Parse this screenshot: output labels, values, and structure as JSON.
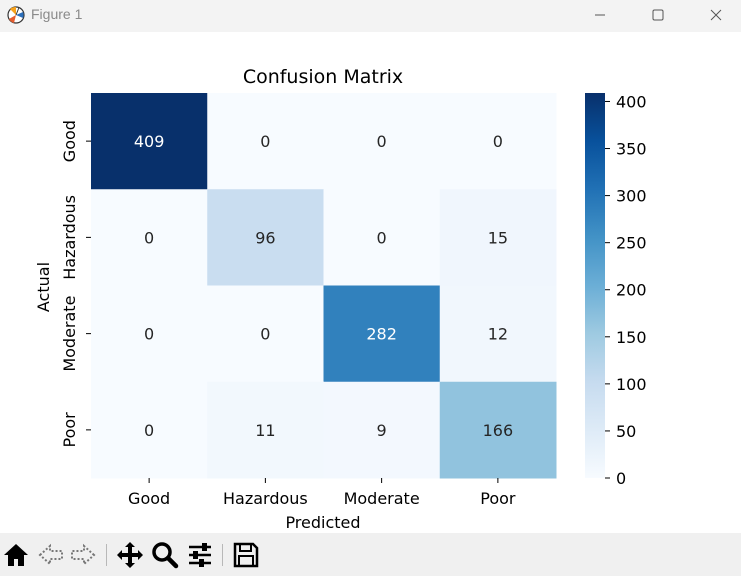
{
  "window": {
    "title": "Figure 1"
  },
  "icons": {
    "app": "matplotlib-icon",
    "minimize": "minimize-icon",
    "maximize": "maximize-icon",
    "close": "close-icon",
    "toolbar": [
      "home-icon",
      "back-icon",
      "forward-icon",
      "pan-icon",
      "zoom-icon",
      "configure-subplots-icon",
      "save-icon"
    ]
  },
  "chart_data": {
    "type": "heatmap",
    "title": "Confusion Matrix",
    "xlabel": "Predicted",
    "ylabel": "Actual",
    "x_categories": [
      "Good",
      "Hazardous",
      "Moderate",
      "Poor"
    ],
    "y_categories": [
      "Good",
      "Hazardous",
      "Moderate",
      "Poor"
    ],
    "values": [
      [
        409,
        0,
        0,
        0
      ],
      [
        0,
        96,
        0,
        15
      ],
      [
        0,
        0,
        282,
        12
      ],
      [
        0,
        11,
        9,
        166
      ]
    ],
    "colormap": "Blues",
    "colorbar": {
      "min": 0,
      "max": 409,
      "ticks": [
        0,
        50,
        100,
        150,
        200,
        250,
        300,
        350,
        400
      ]
    },
    "annotations": true,
    "grid": false
  }
}
